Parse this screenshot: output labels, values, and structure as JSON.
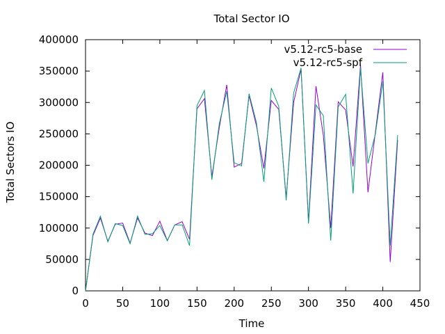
{
  "chart_data": {
    "type": "line",
    "title": "Total Sector IO",
    "xlabel": "Time",
    "ylabel": "Total Sectors IO",
    "xlim": [
      0,
      450
    ],
    "ylim": [
      0,
      400000
    ],
    "x_ticks": [
      0,
      50,
      100,
      150,
      200,
      250,
      300,
      350,
      400,
      450
    ],
    "y_ticks": [
      0,
      50000,
      100000,
      150000,
      200000,
      250000,
      300000,
      350000,
      400000
    ],
    "grid": false,
    "legend_position": "top-right",
    "series": [
      {
        "name": "v5.12-rc5-base",
        "color": "#9400d3",
        "x": [
          0,
          10,
          20,
          30,
          40,
          50,
          60,
          70,
          80,
          90,
          100,
          110,
          120,
          130,
          140,
          150,
          160,
          170,
          180,
          190,
          200,
          210,
          220,
          230,
          240,
          250,
          260,
          270,
          280,
          290,
          300,
          310,
          320,
          330,
          340,
          350,
          360,
          370,
          380,
          390,
          400,
          410,
          420
        ],
        "y": [
          0,
          88000,
          116000,
          79000,
          106000,
          108000,
          76000,
          116000,
          92000,
          88000,
          111000,
          80000,
          105000,
          110000,
          82000,
          290000,
          306000,
          182000,
          260000,
          328000,
          197000,
          203000,
          311000,
          263000,
          195000,
          303000,
          289000,
          148000,
          300000,
          353000,
          110000,
          326000,
          248000,
          100000,
          301000,
          288000,
          198000,
          360000,
          157000,
          253000,
          348000,
          46000,
          240000
        ]
      },
      {
        "name": "v5.12-rc5-spf",
        "color": "#009e73",
        "x": [
          0,
          10,
          20,
          30,
          40,
          50,
          60,
          70,
          80,
          90,
          100,
          110,
          120,
          130,
          140,
          150,
          160,
          170,
          180,
          190,
          200,
          210,
          220,
          230,
          240,
          250,
          260,
          270,
          280,
          290,
          300,
          310,
          320,
          330,
          340,
          350,
          360,
          370,
          380,
          390,
          400,
          410,
          420
        ],
        "y": [
          0,
          90000,
          119000,
          78000,
          107000,
          104000,
          75000,
          119000,
          90000,
          91000,
          104000,
          80000,
          105000,
          105000,
          72000,
          295000,
          319000,
          177000,
          266000,
          318000,
          204000,
          199000,
          314000,
          268000,
          174000,
          323000,
          294000,
          144000,
          315000,
          355000,
          107000,
          296000,
          279000,
          80000,
          293000,
          313000,
          155000,
          355000,
          203000,
          250000,
          334000,
          72000,
          248000
        ]
      }
    ]
  }
}
